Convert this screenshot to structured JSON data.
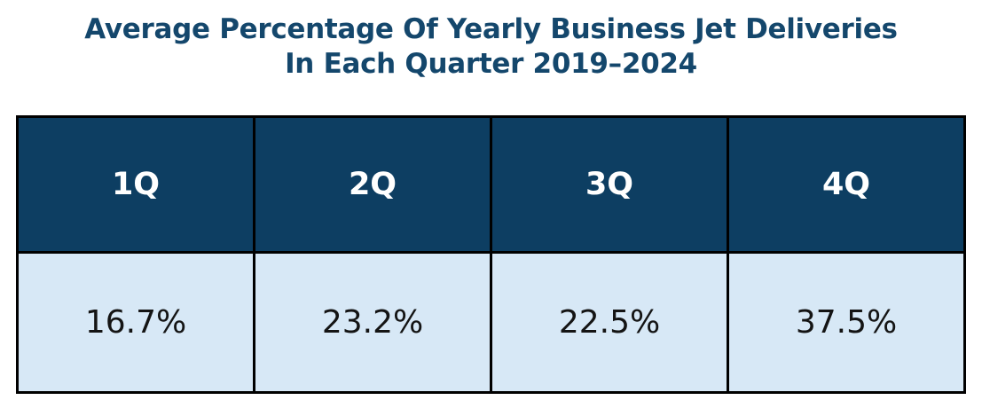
{
  "title": {
    "line1": "Average Percentage Of Yearly Business Jet Deliveries",
    "line2": "In Each Quarter 2019–2024"
  },
  "table": {
    "headers": [
      "1Q",
      "2Q",
      "3Q",
      "4Q"
    ],
    "values": [
      "16.7%",
      "23.2%",
      "22.5%",
      "37.5%"
    ]
  },
  "colors": {
    "title_text": "#14476c",
    "header_fill": "#0d3e62",
    "header_text": "#ffffff",
    "cell_fill": "#d7e8f6",
    "cell_text": "#141414",
    "border": "#000000",
    "background": "#ffffff"
  },
  "chart_data": {
    "type": "table",
    "title": "Average Percentage Of Yearly Business Jet Deliveries In Each Quarter 2019–2024",
    "categories": [
      "1Q",
      "2Q",
      "3Q",
      "4Q"
    ],
    "values": [
      16.7,
      23.2,
      22.5,
      37.5
    ],
    "unit": "%",
    "layout": {
      "header_position": "top",
      "columns": 4,
      "rows": 2,
      "grid": "black solid borders"
    }
  }
}
